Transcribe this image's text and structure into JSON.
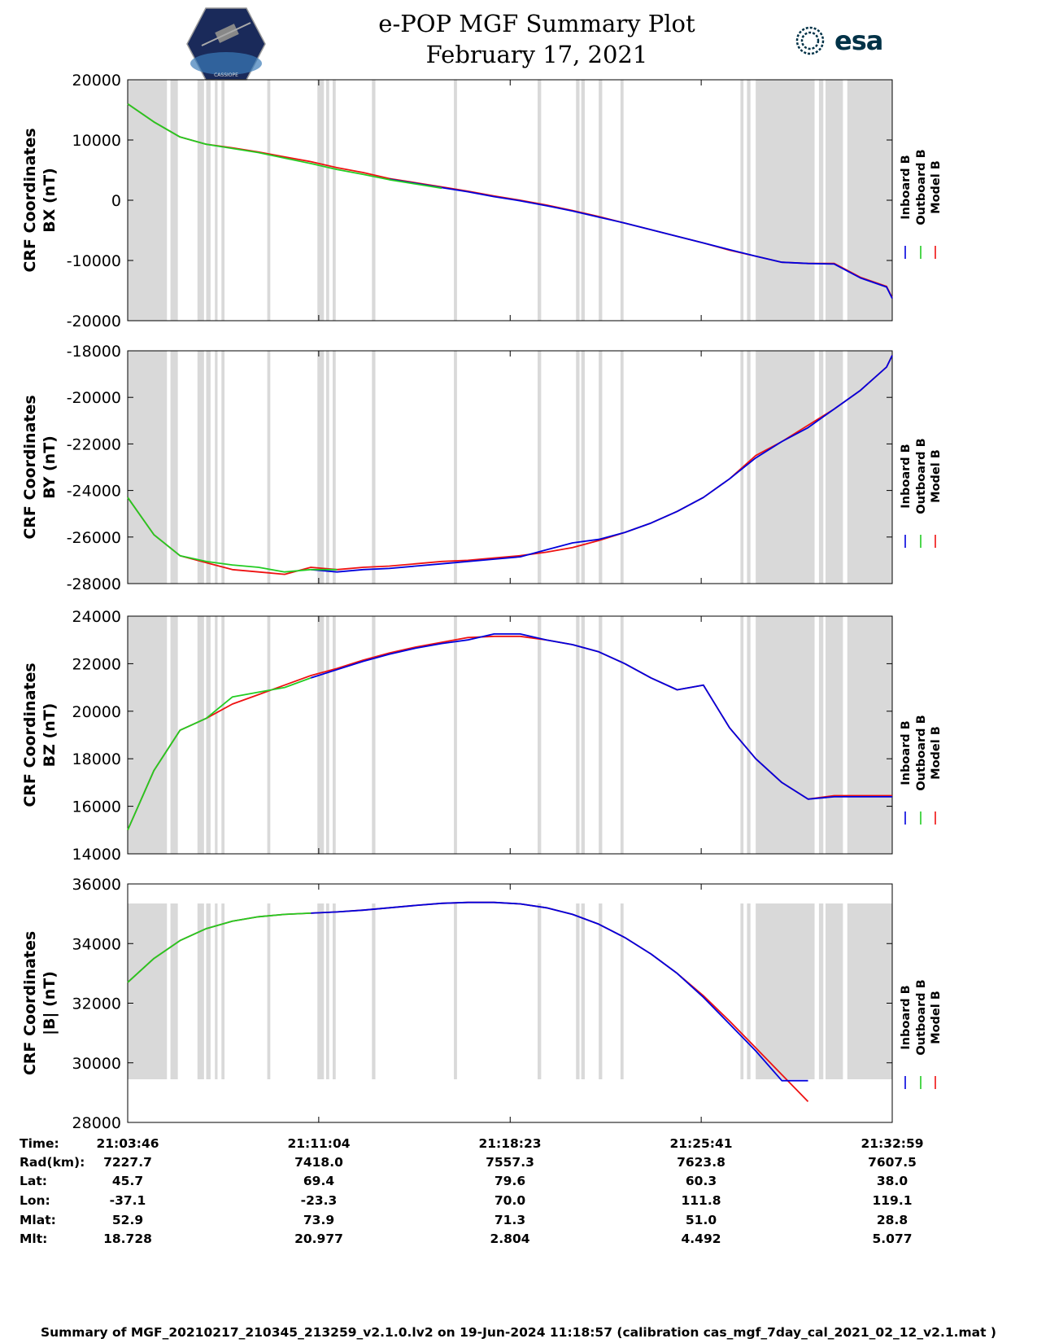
{
  "header": {
    "title_line1": "e-POP MGF Summary Plot",
    "title_line2": "February 17, 2021",
    "esa_logo_text": "esa",
    "cassiope_logo_text": "CASSIOPE"
  },
  "colors": {
    "inboard": "#0000dd",
    "outboard": "#22cc22",
    "model": "#ee1111",
    "gap_shading": "#d9d9d9"
  },
  "legend": [
    "Inboard B",
    "Outboard B",
    "Model B"
  ],
  "chart_data": [
    {
      "type": "line",
      "ylabel_line1": "CRF Coordinates",
      "ylabel_line2": "BX (nT)",
      "ylim": [
        -20000,
        20000
      ],
      "yticks": [
        20000,
        10000,
        0,
        -10000,
        -20000
      ],
      "x": [
        0,
        60,
        120,
        180,
        240,
        300,
        360,
        420,
        480,
        540,
        600,
        660,
        720,
        780,
        840,
        900,
        960,
        1020,
        1080,
        1140,
        1200,
        1260,
        1320,
        1380,
        1440,
        1500,
        1560,
        1620,
        1680,
        1740,
        1753
      ],
      "series": [
        {
          "name": "Model B",
          "color": "#ee1111",
          "values": [
            16000,
            13000,
            10500,
            9300,
            8700,
            8000,
            7200,
            6400,
            5400,
            4600,
            3600,
            2900,
            2200,
            1500,
            700,
            0,
            -800,
            -1700,
            -2700,
            -3800,
            -4900,
            -6000,
            -7100,
            -8300,
            -9300,
            -10300,
            -10500,
            -10500,
            -12800,
            -14300,
            -16200
          ]
        },
        {
          "name": "Inboard B",
          "color": "#0000dd",
          "values": [
            null,
            null,
            null,
            null,
            null,
            null,
            null,
            null,
            null,
            null,
            3500,
            2800,
            2100,
            1400,
            600,
            -100,
            -900,
            -1800,
            -2800,
            -3800,
            -4900,
            -6000,
            -7100,
            -8200,
            -9300,
            -10300,
            -10500,
            -10600,
            -12900,
            -14400,
            -16300
          ]
        },
        {
          "name": "Outboard B",
          "color": "#22cc22",
          "values": [
            16000,
            13000,
            10500,
            9300,
            8600,
            7900,
            7000,
            6100,
            5100,
            4300,
            3400,
            2700,
            2000,
            null,
            null,
            null,
            null,
            null,
            null,
            null,
            null,
            null,
            null,
            null,
            null,
            null,
            null,
            null,
            null,
            null,
            null
          ]
        }
      ]
    },
    {
      "type": "line",
      "ylabel_line1": "CRF Coordinates",
      "ylabel_line2": "BY (nT)",
      "ylim": [
        -28000,
        -18000
      ],
      "yticks": [
        -18000,
        -20000,
        -22000,
        -24000,
        -26000,
        -28000
      ],
      "x": [
        0,
        60,
        120,
        180,
        240,
        300,
        360,
        420,
        480,
        540,
        600,
        660,
        720,
        780,
        840,
        900,
        960,
        1020,
        1080,
        1140,
        1200,
        1260,
        1320,
        1380,
        1440,
        1500,
        1560,
        1620,
        1680,
        1740,
        1753
      ],
      "series": [
        {
          "name": "Model B",
          "color": "#ee1111",
          "values": [
            -24300,
            -25900,
            -26800,
            -27100,
            -27400,
            -27500,
            -27600,
            -27300,
            -27400,
            -27300,
            -27250,
            -27150,
            -27050,
            -27000,
            -26900,
            -26800,
            -26650,
            -26450,
            -26150,
            -25800,
            -25400,
            -24900,
            -24300,
            -23500,
            -22500,
            -21900,
            -21200,
            -20500,
            -19700,
            -18700,
            -18200
          ]
        },
        {
          "name": "Inboard B",
          "color": "#0000dd",
          "values": [
            null,
            null,
            null,
            null,
            null,
            null,
            null,
            -27400,
            -27500,
            -27400,
            -27350,
            -27250,
            -27150,
            -27050,
            -26950,
            -26850,
            -26550,
            -26250,
            -26100,
            -25800,
            -25400,
            -24900,
            -24300,
            -23500,
            -22600,
            -21900,
            -21300,
            -20500,
            -19700,
            -18700,
            -18200
          ]
        },
        {
          "name": "Outboard B",
          "color": "#22cc22",
          "values": [
            -24300,
            -25900,
            -26800,
            -27050,
            -27200,
            -27300,
            -27500,
            -27400,
            -27400,
            null,
            null,
            null,
            null,
            null,
            null,
            null,
            null,
            null,
            null,
            null,
            null,
            null,
            null,
            null,
            null,
            null,
            null,
            null,
            null,
            null,
            null
          ]
        }
      ]
    },
    {
      "type": "line",
      "ylabel_line1": "CRF Coordinates",
      "ylabel_line2": "BZ (nT)",
      "ylim": [
        14000,
        24000
      ],
      "yticks": [
        24000,
        22000,
        20000,
        18000,
        16000,
        14000
      ],
      "x": [
        0,
        60,
        120,
        180,
        240,
        300,
        360,
        420,
        480,
        540,
        600,
        660,
        720,
        780,
        840,
        900,
        960,
        1020,
        1080,
        1140,
        1200,
        1260,
        1320,
        1380,
        1440,
        1500,
        1560,
        1620,
        1680,
        1740,
        1753
      ],
      "series": [
        {
          "name": "Model B",
          "color": "#ee1111",
          "values": [
            15000,
            17500,
            19200,
            19700,
            20300,
            20700,
            21100,
            21500,
            21800,
            22150,
            22450,
            22700,
            22900,
            23100,
            23150,
            23150,
            23000,
            22800,
            22500,
            22000,
            21400,
            20900,
            21100,
            19300,
            18000,
            17000,
            16300,
            16450,
            16450,
            16450,
            16450
          ]
        },
        {
          "name": "Inboard B",
          "color": "#0000dd",
          "values": [
            null,
            null,
            null,
            null,
            null,
            null,
            null,
            21400,
            21750,
            22100,
            22400,
            22650,
            22850,
            23000,
            23250,
            23250,
            23000,
            22800,
            22500,
            22000,
            21400,
            20900,
            21100,
            19300,
            18000,
            17000,
            16300,
            16400,
            16400,
            16400,
            16400
          ]
        },
        {
          "name": "Outboard B",
          "color": "#22cc22",
          "values": [
            15000,
            17500,
            19200,
            19700,
            20600,
            20800,
            21000,
            21400,
            null,
            null,
            null,
            null,
            null,
            null,
            null,
            null,
            null,
            null,
            null,
            null,
            null,
            null,
            null,
            null,
            null,
            null,
            null,
            null,
            null,
            null,
            null
          ]
        }
      ]
    },
    {
      "type": "line",
      "ylabel_line1": "CRF Coordinates",
      "ylabel_line2": "|B| (nT)",
      "ylim": [
        28000,
        36000
      ],
      "yticks": [
        36000,
        34000,
        32000,
        30000,
        28000
      ],
      "x": [
        0,
        60,
        120,
        180,
        240,
        300,
        360,
        420,
        480,
        540,
        600,
        660,
        720,
        780,
        840,
        900,
        960,
        1020,
        1080,
        1140,
        1200,
        1260,
        1320,
        1380,
        1440,
        1500,
        1560,
        1620,
        1680,
        1740,
        1753
      ],
      "series": [
        {
          "name": "Model B",
          "color": "#ee1111",
          "values": [
            32700,
            33500,
            34100,
            34500,
            34750,
            34900,
            34980,
            35020,
            35060,
            35120,
            35200,
            35280,
            35350,
            35380,
            35380,
            35330,
            35200,
            34980,
            34650,
            34200,
            33650,
            33000,
            32250,
            31400,
            30500,
            29600,
            28700,
            null,
            null,
            null,
            null
          ]
        },
        {
          "name": "Inboard B",
          "color": "#0000dd",
          "values": [
            null,
            null,
            null,
            null,
            null,
            null,
            null,
            35020,
            35060,
            35120,
            35200,
            35280,
            35350,
            35380,
            35380,
            35330,
            35200,
            34980,
            34650,
            34200,
            33650,
            33000,
            32200,
            31300,
            30400,
            29400,
            29400,
            null,
            null,
            null,
            null
          ]
        },
        {
          "name": "Outboard B",
          "color": "#22cc22",
          "values": [
            32700,
            33500,
            34100,
            34500,
            34750,
            34900,
            34980,
            35020,
            null,
            null,
            null,
            null,
            null,
            null,
            null,
            null,
            null,
            null,
            null,
            null,
            null,
            null,
            null,
            null,
            null,
            null,
            null,
            null,
            null,
            null,
            null
          ]
        }
      ]
    }
  ],
  "x_axis": {
    "tick_seconds": [
      0,
      438,
      877,
      1315,
      1753
    ],
    "tick_labels": [
      "21:03:46",
      "21:11:04",
      "21:18:23",
      "21:25:41",
      "21:32:59"
    ]
  },
  "table": {
    "rows": [
      {
        "label": "Time:",
        "values": [
          "21:03:46",
          "21:11:04",
          "21:18:23",
          "21:25:41",
          "21:32:59"
        ]
      },
      {
        "label": "Rad(km):",
        "values": [
          "7227.7",
          "7418.0",
          "7557.3",
          "7623.8",
          "7607.5"
        ]
      },
      {
        "label": "Lat:",
        "values": [
          "45.7",
          "69.4",
          "79.6",
          "60.3",
          "38.0"
        ]
      },
      {
        "label": "Lon:",
        "values": [
          "-37.1",
          "-23.3",
          "70.0",
          "111.8",
          "119.1"
        ]
      },
      {
        "label": "Mlat:",
        "values": [
          "52.9",
          "73.9",
          "71.3",
          "51.0",
          "28.8"
        ]
      },
      {
        "label": "Mlt:",
        "values": [
          "18.728",
          "20.977",
          "2.804",
          "4.492",
          "5.077"
        ]
      }
    ]
  },
  "footer": "Summary of MGF_20210217_210345_213259_v2.1.0.lv2 on 19-Jun-2024 11:18:57 (calibration cas_mgf_7day_cal_2021_02_12_v2.1.mat )",
  "gap_intervals_seconds": [
    [
      0,
      90
    ],
    [
      98,
      115
    ],
    [
      160,
      175
    ],
    [
      180,
      190
    ],
    [
      200,
      206
    ],
    [
      215,
      222
    ],
    [
      320,
      327
    ],
    [
      435,
      450
    ],
    [
      455,
      462
    ],
    [
      470,
      477
    ],
    [
      560,
      568
    ],
    [
      748,
      755
    ],
    [
      940,
      948
    ],
    [
      1028,
      1036
    ],
    [
      1040,
      1048
    ],
    [
      1080,
      1088
    ],
    [
      1130,
      1137
    ],
    [
      1405,
      1412
    ],
    [
      1420,
      1428
    ],
    [
      1440,
      1575
    ],
    [
      1585,
      1595
    ],
    [
      1600,
      1640
    ],
    [
      1650,
      1753
    ]
  ]
}
